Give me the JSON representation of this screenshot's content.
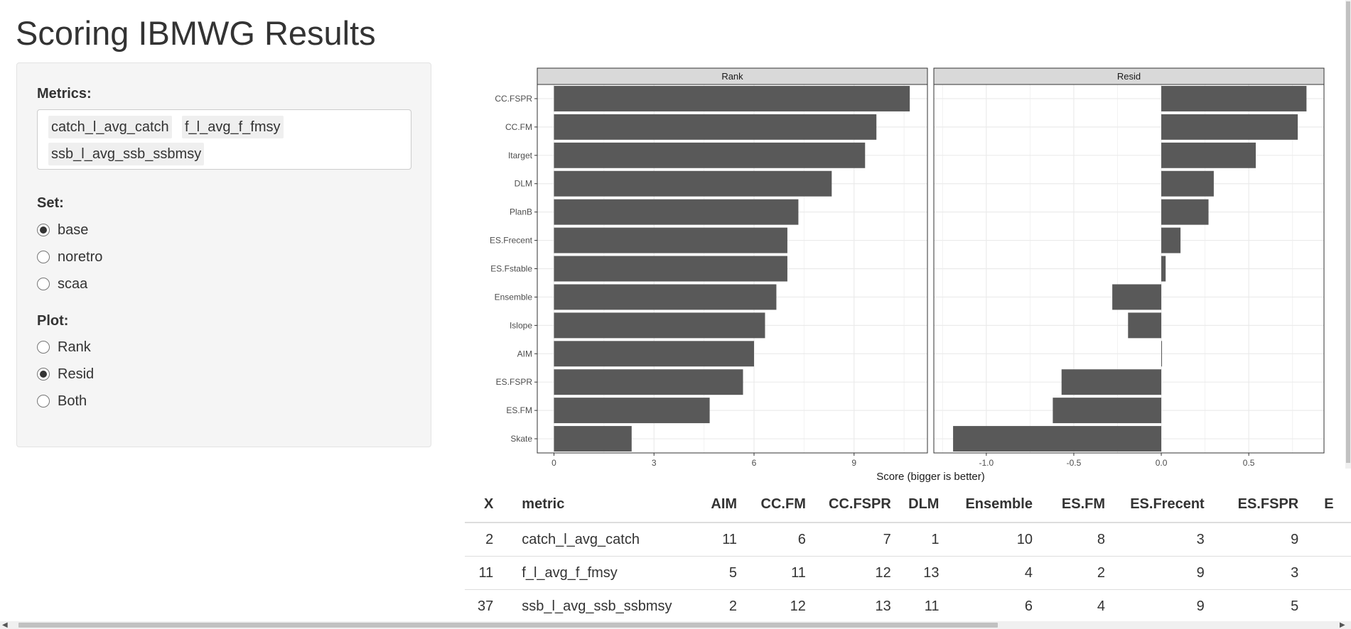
{
  "page": {
    "title": "Scoring IBMWG Results"
  },
  "sidebar": {
    "metrics_label": "Metrics:",
    "metrics_selected": [
      "catch_l_avg_catch",
      "f_l_avg_f_fmsy",
      "ssb_l_avg_ssb_ssbmsy"
    ],
    "set_label": "Set:",
    "set_options": [
      "base",
      "noretro",
      "scaa"
    ],
    "set_selected": "base",
    "plot_label": "Plot:",
    "plot_options": [
      "Rank",
      "Resid",
      "Both"
    ],
    "plot_selected": "Both"
  },
  "chart_data": {
    "type": "bar",
    "orientation": "horizontal",
    "xlabel": "Score (bigger is better)",
    "categories": [
      "CC.FSPR",
      "CC.FM",
      "Itarget",
      "DLM",
      "PlanB",
      "ES.Frecent",
      "ES.Fstable",
      "Ensemble",
      "Islope",
      "AIM",
      "ES.FSPR",
      "ES.FM",
      "Skate"
    ],
    "facets": [
      {
        "name": "Rank",
        "values": [
          10.67,
          9.67,
          9.33,
          8.33,
          7.33,
          7.0,
          7.0,
          6.67,
          6.33,
          6.0,
          5.67,
          4.67,
          2.33
        ],
        "xlim": [
          -0.5,
          11.2
        ],
        "xticks": [
          0,
          3,
          6,
          9
        ],
        "xtick_labels": [
          "0",
          "3",
          "6",
          "9"
        ]
      },
      {
        "name": "Resid",
        "values": [
          0.83,
          0.78,
          0.54,
          0.3,
          0.27,
          0.11,
          0.025,
          -0.28,
          -0.19,
          0.002,
          -0.57,
          -0.62,
          -1.19
        ],
        "xlim": [
          -1.3,
          0.93
        ],
        "xticks": [
          -1.0,
          -0.5,
          0.0,
          0.5
        ],
        "xtick_labels": [
          "-1.0",
          "-0.5",
          "0.0",
          "0.5"
        ]
      }
    ],
    "bar_color": "#595959",
    "panel_header_color": "#d9d9d9",
    "grid": true
  },
  "table": {
    "columns": [
      "X",
      "metric",
      "AIM",
      "CC.FM",
      "CC.FSPR",
      "DLM",
      "Ensemble",
      "ES.FM",
      "ES.Frecent",
      "ES.FSPR",
      "E"
    ],
    "rows": [
      [
        "2",
        "catch_l_avg_catch",
        "11",
        "6",
        "7",
        "1",
        "10",
        "8",
        "3",
        "9",
        ""
      ],
      [
        "11",
        "f_l_avg_f_fmsy",
        "5",
        "11",
        "12",
        "13",
        "4",
        "2",
        "9",
        "3",
        ""
      ],
      [
        "37",
        "ssb_l_avg_ssb_ssbmsy",
        "2",
        "12",
        "13",
        "11",
        "6",
        "4",
        "9",
        "5",
        ""
      ]
    ]
  },
  "icons": {
    "scroll_left": "chevron-left-icon",
    "scroll_right": "chevron-right-icon"
  }
}
